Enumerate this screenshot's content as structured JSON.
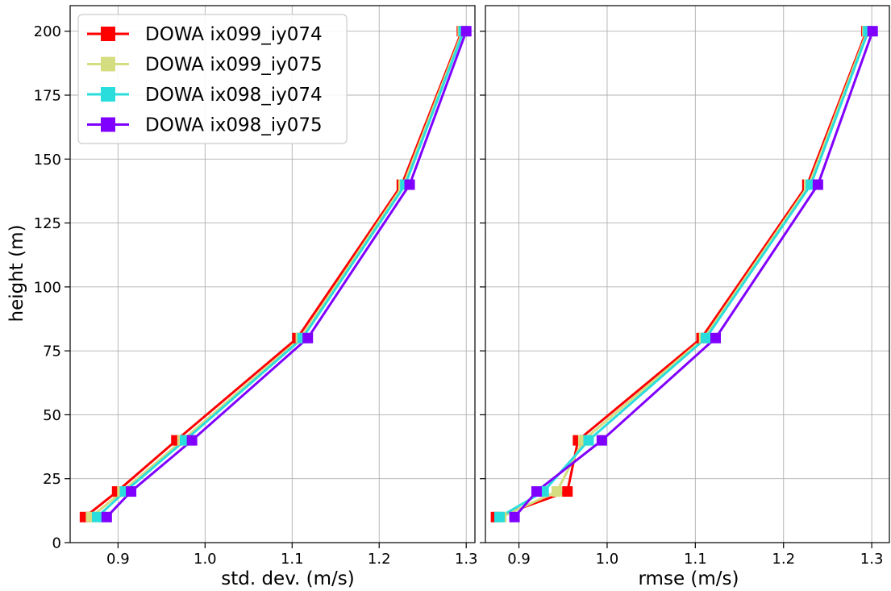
{
  "chart_data": [
    {
      "type": "line",
      "xlabel": "std. dev. (m/s)",
      "ylabel": "height (m)",
      "xlim": [
        0.845,
        1.31
      ],
      "ylim": [
        0,
        210
      ],
      "xticks": [
        "0.9",
        "1.0",
        "1.1",
        "1.2",
        "1.3"
      ],
      "yticks": [
        "0",
        "25",
        "50",
        "75",
        "100",
        "125",
        "150",
        "175",
        "200"
      ],
      "grid": true,
      "legend": "upper-left",
      "y": [
        10,
        20,
        40,
        80,
        140,
        200
      ],
      "series": [
        {
          "name": "DOWA ix099_iy074",
          "color": "#ff0000",
          "x": [
            0.862,
            0.899,
            0.967,
            1.106,
            1.226,
            1.295
          ]
        },
        {
          "name": "DOWA ix099_iy075",
          "color": "#d4dd80",
          "x": [
            0.869,
            0.905,
            0.974,
            1.11,
            1.228,
            1.296
          ]
        },
        {
          "name": "DOWA ix098_iy074",
          "color": "#2adddd",
          "x": [
            0.876,
            0.908,
            0.977,
            1.112,
            1.23,
            1.297
          ]
        },
        {
          "name": "DOWA ix098_iy075",
          "color": "#8000ff",
          "x": [
            0.887,
            0.915,
            0.985,
            1.118,
            1.235,
            1.3
          ]
        }
      ]
    },
    {
      "type": "line",
      "xlabel": "rmse (m/s)",
      "ylabel": "",
      "xlim": [
        0.862,
        1.32
      ],
      "ylim": [
        0,
        210
      ],
      "xticks": [
        "0.9",
        "1.0",
        "1.1",
        "1.2",
        "1.3"
      ],
      "grid": true,
      "y": [
        10,
        20,
        40,
        80,
        140,
        200
      ],
      "series": [
        {
          "name": "DOWA ix099_iy074",
          "color": "#ff0000",
          "x": [
            0.874,
            0.955,
            0.967,
            1.107,
            1.227,
            1.294
          ]
        },
        {
          "name": "DOWA ix099_iy075",
          "color": "#d4dd80",
          "x": [
            0.88,
            0.943,
            0.973,
            1.11,
            1.229,
            1.295
          ]
        },
        {
          "name": "DOWA ix098_iy074",
          "color": "#2adddd",
          "x": [
            0.878,
            0.928,
            0.979,
            1.112,
            1.231,
            1.296
          ]
        },
        {
          "name": "DOWA ix098_iy075",
          "color": "#8000ff",
          "x": [
            0.895,
            0.92,
            0.994,
            1.123,
            1.239,
            1.301
          ]
        }
      ]
    }
  ]
}
